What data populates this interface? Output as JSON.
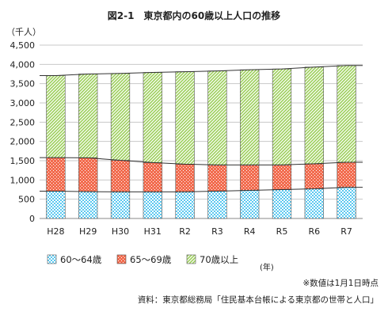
{
  "chart_data": {
    "type": "bar",
    "stacked": true,
    "title": "図2-1　東京都内の60歳以上人口の推移",
    "y_unit_label": "（千人）",
    "x_unit_label": "(年)",
    "categories": [
      "H28",
      "H29",
      "H30",
      "H31",
      "R2",
      "R3",
      "R4",
      "R5",
      "R6",
      "R7"
    ],
    "series": [
      {
        "name": "60～64歳",
        "values": [
          710,
          695,
          690,
          690,
          690,
          710,
          730,
          750,
          770,
          810
        ],
        "color": "#5bc8f0",
        "pattern": "dots"
      },
      {
        "name": "65～69歳",
        "values": [
          870,
          880,
          820,
          760,
          720,
          680,
          660,
          640,
          650,
          650
        ],
        "color": "#f26c4f",
        "pattern": "cross"
      },
      {
        "name": "70歳以上",
        "values": [
          2130,
          2175,
          2255,
          2340,
          2400,
          2440,
          2470,
          2490,
          2510,
          2510
        ],
        "color": "#9ccf5a",
        "pattern": "diagonal"
      }
    ],
    "ylim": [
      0,
      4500
    ],
    "yticks": [
      "0",
      "500",
      "1,000",
      "1,500",
      "2,000",
      "2,500",
      "3,000",
      "3,500",
      "4,000",
      "4,500"
    ],
    "grid": true,
    "legend_position": "bottom"
  },
  "notes": {
    "note1": "※数値は1月1日時点",
    "source": "資料：東京都総務局「住民基本台帳による東京都の世帯と人口」"
  }
}
